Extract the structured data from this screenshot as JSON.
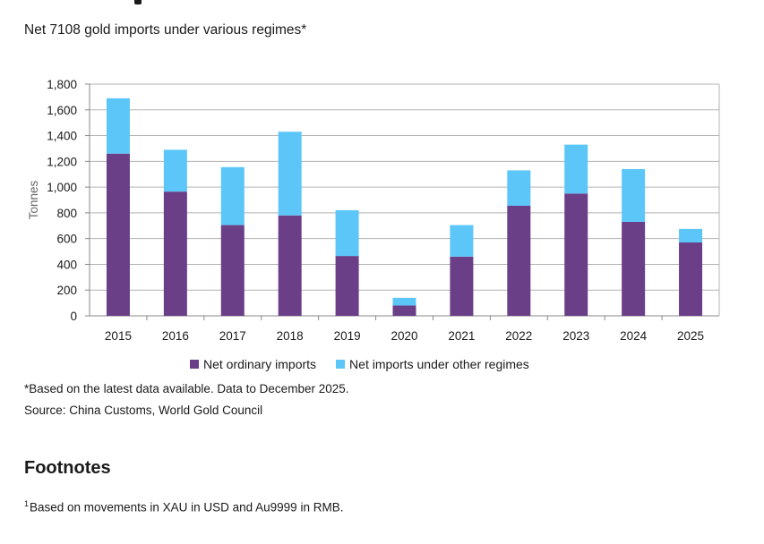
{
  "chart_data": {
    "type": "bar",
    "stacked": true,
    "title": "Net 7108 gold imports under various regimes*",
    "xlabel": "",
    "ylabel": "Tonnes",
    "ylim": [
      0,
      1800
    ],
    "yticks": [
      0,
      200,
      400,
      600,
      800,
      1000,
      1200,
      1400,
      1600,
      1800
    ],
    "ytick_labels": [
      "0",
      "200",
      "400",
      "600",
      "800",
      "1,000",
      "1,200",
      "1,400",
      "1,600",
      "1,800"
    ],
    "categories": [
      "2015",
      "2016",
      "2017",
      "2018",
      "2019",
      "2020",
      "2021",
      "2022",
      "2023",
      "2024",
      "2025"
    ],
    "series": [
      {
        "name": "Net ordinary imports",
        "color": "#6b3f87",
        "values": [
          1260,
          965,
          705,
          780,
          465,
          80,
          460,
          855,
          950,
          730,
          570
        ]
      },
      {
        "name": "Net imports under other regimes",
        "color": "#5cc6f8",
        "values": [
          430,
          325,
          450,
          650,
          355,
          60,
          245,
          275,
          380,
          410,
          105
        ]
      }
    ],
    "grid": true,
    "legend_position": "bottom"
  },
  "notes": {
    "data_note": "*Based on the latest data available. Data to December 2025.",
    "source": "Source: China Customs, World Gold Council"
  },
  "footnotes": {
    "heading": "Footnotes",
    "marker": "1",
    "text": "Based on movements in XAU in USD and Au9999 in RMB."
  }
}
